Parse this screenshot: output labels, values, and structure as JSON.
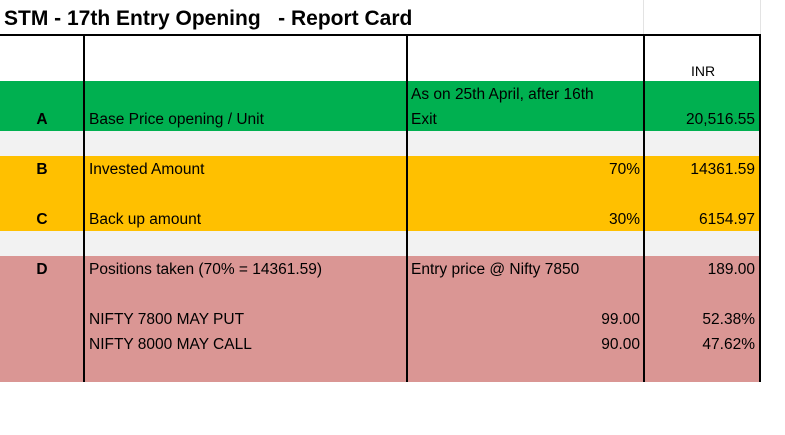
{
  "title": "STM - 17th Entry Opening   - Report Card",
  "header": {
    "currency": "INR"
  },
  "colors": {
    "green": "#00b050",
    "amber": "#ffc000",
    "rose": "#da9694",
    "gap": "#f2f2f2"
  },
  "rows": {
    "a": {
      "letter": "A",
      "label": "Base Price opening  / Unit",
      "note_line1": "As on 25th April, after 16th",
      "note_line2": "Exit",
      "value": "20,516.55"
    },
    "b": {
      "letter": "B",
      "label": "Invested Amount",
      "pct": "70%",
      "value": "14361.59"
    },
    "c": {
      "letter": "C",
      "label": "Back up amount",
      "pct": "30%",
      "value": "6154.97"
    },
    "d": {
      "letter": "D",
      "label": "Positions taken   (70% = 14361.59)",
      "note": "Entry price @ Nifty 7850",
      "value": "189.00"
    }
  },
  "positions": [
    {
      "name": "NIFTY 7800 MAY PUT",
      "price": "99.00",
      "share": "52.38%"
    },
    {
      "name": "NIFTY 8000 MAY CALL",
      "price": "90.00",
      "share": "47.62%"
    }
  ]
}
